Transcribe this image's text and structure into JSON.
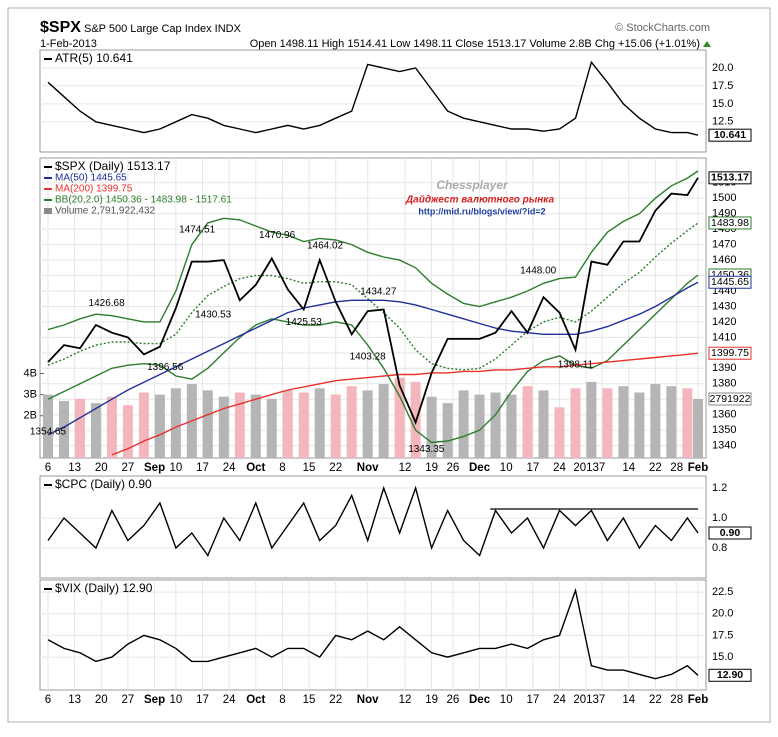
{
  "header": {
    "symbol": "$SPX",
    "name": "S&P 500 Large Cap Index INDX",
    "source": "© StockCharts.com",
    "date": "1-Feb-2013",
    "quote": "Open 1498.11 High 1514.41 Low 1498.11 Close 1513.17 Volume 2.8B Chg +15.06 (+1.01%)"
  },
  "watermark": {
    "title": "Chessplayer",
    "subtitle": "Дайджест валютного рынка",
    "url": "http://mid.ru/blogs/view/?id=2"
  },
  "chart_data": [
    {
      "type": "line",
      "grid": true,
      "xlim": [
        -1.5,
        123.5
      ],
      "ylim": [
        8.3,
        22.5
      ],
      "yticks": [
        {
          "value": 20,
          "label": "20.0"
        },
        17.5,
        {
          "value": 15,
          "label": "15.0"
        },
        12.5
      ],
      "x": [
        0,
        3,
        6,
        9,
        12,
        15,
        18,
        21,
        24,
        27,
        30,
        33,
        36,
        39,
        42,
        45,
        48,
        51,
        54,
        57,
        60,
        63,
        66,
        69,
        72,
        75,
        78,
        81,
        84,
        87,
        90,
        93,
        96,
        99,
        102,
        105,
        108,
        111,
        114,
        117,
        120,
        122
      ],
      "series": [
        {
          "name": "ATR(5) 10.641",
          "color": "#000000",
          "values": [
            18,
            16,
            14,
            12.5,
            12,
            11.5,
            11,
            11.5,
            12.5,
            13.5,
            13,
            12,
            11.5,
            11,
            11.5,
            12,
            11.5,
            12,
            13,
            14,
            20.5,
            20,
            19.5,
            20,
            17,
            14,
            13,
            12.5,
            12,
            11.5,
            11.5,
            11.2,
            11.5,
            13,
            20.8,
            18,
            15,
            13,
            11.5,
            11,
            11,
            10.641
          ]
        }
      ],
      "value_boxes": [
        {
          "value": 10.641,
          "color": "#000000"
        }
      ]
    },
    {
      "type": "line",
      "grid": true,
      "xlim": [
        -1.5,
        123.5
      ],
      "ylim": [
        1332,
        1526
      ],
      "y2lim": [
        0,
        14200000000
      ],
      "yticks": [
        1340,
        1350,
        1360,
        1370,
        1380,
        1390,
        1400,
        1410,
        1420,
        1430,
        1440,
        1450,
        1460,
        1470,
        1480,
        1490,
        1500,
        1510
      ],
      "y2ticks": [
        {
          "value": 4000000000,
          "label": "4B"
        },
        {
          "value": 3000000000,
          "label": "3B"
        },
        {
          "value": 2000000000,
          "label": "2B"
        }
      ],
      "xticks": [
        {
          "value": 0,
          "label": "6"
        },
        {
          "value": 5,
          "label": "13"
        },
        {
          "value": 10,
          "label": "20"
        },
        {
          "value": 15,
          "label": "27"
        },
        {
          "value": 20,
          "label": "Sep"
        },
        {
          "value": 24,
          "label": "10"
        },
        {
          "value": 29,
          "label": "17"
        },
        {
          "value": 34,
          "label": "24"
        },
        {
          "value": 39,
          "label": "Oct"
        },
        {
          "value": 44,
          "label": "8"
        },
        {
          "value": 49,
          "label": "15"
        },
        {
          "value": 54,
          "label": "22"
        },
        {
          "value": 60,
          "label": "Nov"
        },
        {
          "value": 67,
          "label": "12"
        },
        {
          "value": 72,
          "label": "19"
        },
        {
          "value": 76,
          "label": "26"
        },
        {
          "value": 81,
          "label": "Dec"
        },
        {
          "value": 86,
          "label": "10"
        },
        {
          "value": 91,
          "label": "17"
        },
        {
          "value": 96,
          "label": "24"
        },
        {
          "value": 101,
          "label": "2013"
        },
        {
          "value": 104,
          "label": "7"
        },
        {
          "value": 109,
          "label": "14"
        },
        {
          "value": 114,
          "label": "22"
        },
        {
          "value": 118,
          "label": "28"
        },
        {
          "value": 122,
          "label": "Feb"
        }
      ],
      "x": [
        0,
        3,
        6,
        9,
        12,
        15,
        18,
        21,
        24,
        27,
        30,
        33,
        36,
        39,
        42,
        45,
        48,
        51,
        54,
        57,
        60,
        63,
        66,
        69,
        72,
        75,
        78,
        81,
        84,
        87,
        90,
        93,
        96,
        99,
        102,
        105,
        108,
        111,
        114,
        117,
        120,
        122
      ],
      "series": [
        {
          "name": "$SPX (Daily) 1513.17",
          "color": "#000000",
          "values": [
            1394,
            1405,
            1403,
            1418,
            1413,
            1410,
            1399,
            1404,
            1429,
            1459,
            1459,
            1460,
            1434,
            1444,
            1461,
            1441,
            1428,
            1460,
            1433,
            1412,
            1427,
            1428,
            1379,
            1355,
            1387,
            1409,
            1409,
            1409,
            1413,
            1427,
            1413,
            1436,
            1426,
            1402,
            1459,
            1457,
            1472,
            1472,
            1492,
            1503,
            1502,
            1513.17
          ]
        },
        {
          "name": "MA(50) 1445.65",
          "color": "#1f2f99",
          "values": [
            1347,
            1352,
            1358,
            1364,
            1370,
            1376,
            1381,
            1386,
            1391,
            1396,
            1401,
            1406,
            1411,
            1416,
            1421,
            1426,
            1429,
            1431,
            1433,
            1434,
            1434,
            1434,
            1433,
            1431,
            1428,
            1425,
            1422,
            1419,
            1416,
            1414,
            1413,
            1412,
            1412,
            1412,
            1414,
            1417,
            1421,
            1425,
            1430,
            1436,
            1442,
            1445.65
          ]
        },
        {
          "name": "MA(200) 1399.75",
          "color": "#e8322b",
          "values": [
            null,
            null,
            null,
            null,
            1334,
            1338,
            1343,
            1347,
            1352,
            1356,
            1360,
            1364,
            1367,
            1370,
            1373,
            1376,
            1378,
            1380,
            1382,
            1383,
            1384,
            1385,
            1386,
            1386,
            1387,
            1387,
            1388,
            1388,
            1389,
            1389,
            1390,
            1391,
            1391,
            1392,
            1393,
            1394,
            1395,
            1396,
            1397,
            1398,
            1399,
            1399.75
          ]
        },
        {
          "name": "BB(20,2.0) 1450.36 - 1483.98 - 1517.61",
          "color": "#2e7d2e",
          "values": [
            1392,
            1396,
            1401,
            1405,
            1407,
            1407,
            1406,
            1406,
            1412,
            1426,
            1437,
            1443,
            1448,
            1450,
            1450,
            1448,
            1445,
            1446,
            1446,
            1444,
            1435,
            1426,
            1416,
            1402,
            1393,
            1390,
            1389,
            1390,
            1396,
            1405,
            1414,
            1420,
            1423,
            1420,
            1427,
            1436,
            1445,
            1452,
            1462,
            1471,
            1479,
            1483.98
          ],
          "upper": [
            1415,
            1418,
            1422,
            1425,
            1424,
            1422,
            1420,
            1420,
            1440,
            1470,
            1484,
            1487,
            1486,
            1482,
            1478,
            1476,
            1472,
            1474,
            1473,
            1470,
            1465,
            1462,
            1460,
            1455,
            1445,
            1438,
            1432,
            1430,
            1433,
            1436,
            1440,
            1445,
            1448,
            1449,
            1465,
            1478,
            1485,
            1490,
            1500,
            1508,
            1513,
            1517.61
          ],
          "lower": [
            1370,
            1375,
            1380,
            1385,
            1390,
            1392,
            1393,
            1392,
            1385,
            1383,
            1390,
            1400,
            1410,
            1418,
            1422,
            1420,
            1418,
            1418,
            1420,
            1418,
            1405,
            1390,
            1372,
            1350,
            1342,
            1343,
            1346,
            1350,
            1360,
            1375,
            1388,
            1395,
            1398,
            1392,
            1390,
            1395,
            1405,
            1415,
            1425,
            1435,
            1445,
            1450.36
          ]
        },
        {
          "name": "Volume 2,791,922,432",
          "type": "bar",
          "axis": "y2",
          "color": "#b5b5b5",
          "down_color": "#f4b6bd",
          "values": [
            3000000000,
            2700000000,
            2800000000,
            2600000000,
            2900000000,
            2500000000,
            3100000000,
            3000000000,
            3300000000,
            3500000000,
            3200000000,
            2900000000,
            3100000000,
            3000000000,
            2800000000,
            3200000000,
            3100000000,
            3300000000,
            3000000000,
            3400000000,
            3200000000,
            3500000000,
            3800000000,
            3600000000,
            2900000000,
            2600000000,
            3200000000,
            3000000000,
            3100000000,
            3000000000,
            3400000000,
            3200000000,
            2400000000,
            3300000000,
            3600000000,
            3300000000,
            3400000000,
            3100000000,
            3500000000,
            3400000000,
            3300000000,
            2791922432
          ]
        }
      ],
      "annotations": [
        {
          "x": 28,
          "value": 1474.51
        },
        {
          "x": 43,
          "value": 1470.96
        },
        {
          "x": 52,
          "value": 1464.02
        },
        {
          "x": 62,
          "value": 1434.27
        },
        {
          "x": 92,
          "value": 1448.0
        },
        {
          "x": 11,
          "value": 1426.68
        },
        {
          "x": 31,
          "value": 1430.53
        },
        {
          "x": 48,
          "value": 1425.53
        },
        {
          "x": 60,
          "value": 1403.28
        },
        {
          "x": 22,
          "value": 1396.56
        },
        {
          "x": 99,
          "value": 1398.11
        },
        {
          "x": 71,
          "value": 1343.35
        },
        {
          "x": 0,
          "value": 1354.65
        }
      ],
      "value_boxes": [
        {
          "value": 1513.17,
          "color": "#000000"
        },
        {
          "value": 1483.98,
          "color": "#2e7d2e"
        },
        {
          "value": 1450.36,
          "color": "#2e7d2e"
        },
        {
          "value": 1445.65,
          "color": "#1f2f99"
        },
        {
          "value": 1399.75,
          "color": "#e8322b"
        },
        {
          "value": 2791922432,
          "label": "2791922",
          "axis": "y2",
          "color": "#888888"
        }
      ]
    },
    {
      "type": "line",
      "grid": true,
      "xlim": [
        -1.5,
        123.5
      ],
      "ylim": [
        0.6,
        1.28
      ],
      "yticks": [
        1.2,
        {
          "value": 1,
          "label": "1.0"
        },
        0.8
      ],
      "x": [
        0,
        3,
        6,
        9,
        12,
        15,
        18,
        21,
        24,
        27,
        30,
        33,
        36,
        39,
        42,
        45,
        48,
        51,
        54,
        57,
        60,
        63,
        66,
        69,
        72,
        75,
        78,
        81,
        84,
        87,
        90,
        93,
        96,
        99,
        102,
        105,
        108,
        111,
        114,
        117,
        120,
        122
      ],
      "series": [
        {
          "name": "$CPC (Daily) 0.90",
          "color": "#000000",
          "values": [
            0.85,
            1.0,
            0.9,
            0.8,
            1.05,
            0.85,
            0.95,
            1.1,
            0.8,
            0.9,
            0.75,
            1.0,
            0.85,
            1.1,
            0.8,
            0.95,
            1.1,
            0.85,
            0.95,
            1.15,
            0.85,
            1.2,
            0.9,
            1.2,
            0.8,
            1.05,
            0.85,
            0.75,
            1.05,
            0.9,
            1.0,
            0.8,
            1.05,
            0.95,
            1.05,
            0.85,
            1.0,
            0.8,
            0.95,
            0.85,
            1.0,
            0.9
          ]
        }
      ],
      "lines": [
        {
          "x": [
            83,
            122
          ],
          "value": 1.06
        }
      ],
      "value_boxes": [
        {
          "value": 0.9,
          "label": "0.90",
          "color": "#000000"
        }
      ]
    },
    {
      "type": "line",
      "grid": true,
      "xlim": [
        -1.5,
        123.5
      ],
      "ylim": [
        11.2,
        23.9
      ],
      "yticks": [
        22.5,
        {
          "value": 20,
          "label": "20.0"
        },
        17.5,
        {
          "value": 15,
          "label": "15.0"
        }
      ],
      "xticks": [
        {
          "value": 0,
          "label": "6"
        },
        {
          "value": 5,
          "label": "13"
        },
        {
          "value": 10,
          "label": "20"
        },
        {
          "value": 15,
          "label": "27"
        },
        {
          "value": 20,
          "label": "Sep"
        },
        {
          "value": 24,
          "label": "10"
        },
        {
          "value": 29,
          "label": "17"
        },
        {
          "value": 34,
          "label": "24"
        },
        {
          "value": 39,
          "label": "Oct"
        },
        {
          "value": 44,
          "label": "8"
        },
        {
          "value": 49,
          "label": "15"
        },
        {
          "value": 54,
          "label": "22"
        },
        {
          "value": 60,
          "label": "Nov"
        },
        {
          "value": 67,
          "label": "12"
        },
        {
          "value": 72,
          "label": "19"
        },
        {
          "value": 76,
          "label": "26"
        },
        {
          "value": 81,
          "label": "Dec"
        },
        {
          "value": 86,
          "label": "10"
        },
        {
          "value": 91,
          "label": "17"
        },
        {
          "value": 96,
          "label": "24"
        },
        {
          "value": 101,
          "label": "2013"
        },
        {
          "value": 104,
          "label": "7"
        },
        {
          "value": 109,
          "label": "14"
        },
        {
          "value": 114,
          "label": "22"
        },
        {
          "value": 118,
          "label": "28"
        },
        {
          "value": 122,
          "label": "Feb"
        }
      ],
      "x": [
        0,
        3,
        6,
        9,
        12,
        15,
        18,
        21,
        24,
        27,
        30,
        33,
        36,
        39,
        42,
        45,
        48,
        51,
        54,
        57,
        60,
        63,
        66,
        69,
        72,
        75,
        78,
        81,
        84,
        87,
        90,
        93,
        96,
        99,
        102,
        105,
        108,
        111,
        114,
        117,
        120,
        122
      ],
      "series": [
        {
          "name": "$VIX (Daily) 12.90",
          "color": "#000000",
          "values": [
            17,
            16,
            15.5,
            14.5,
            15,
            16.5,
            17.5,
            17,
            16,
            14.5,
            14.5,
            15,
            15.5,
            16,
            15,
            16,
            16,
            15,
            17.5,
            17,
            18,
            17,
            18.5,
            17,
            15.5,
            15,
            15.5,
            16,
            16,
            16.5,
            16,
            17,
            17.5,
            22.7,
            14,
            13.5,
            13.5,
            13,
            12.5,
            13,
            14,
            12.9
          ]
        }
      ],
      "value_boxes": [
        {
          "value": 12.9,
          "label": "12.90",
          "color": "#000000"
        }
      ]
    }
  ]
}
